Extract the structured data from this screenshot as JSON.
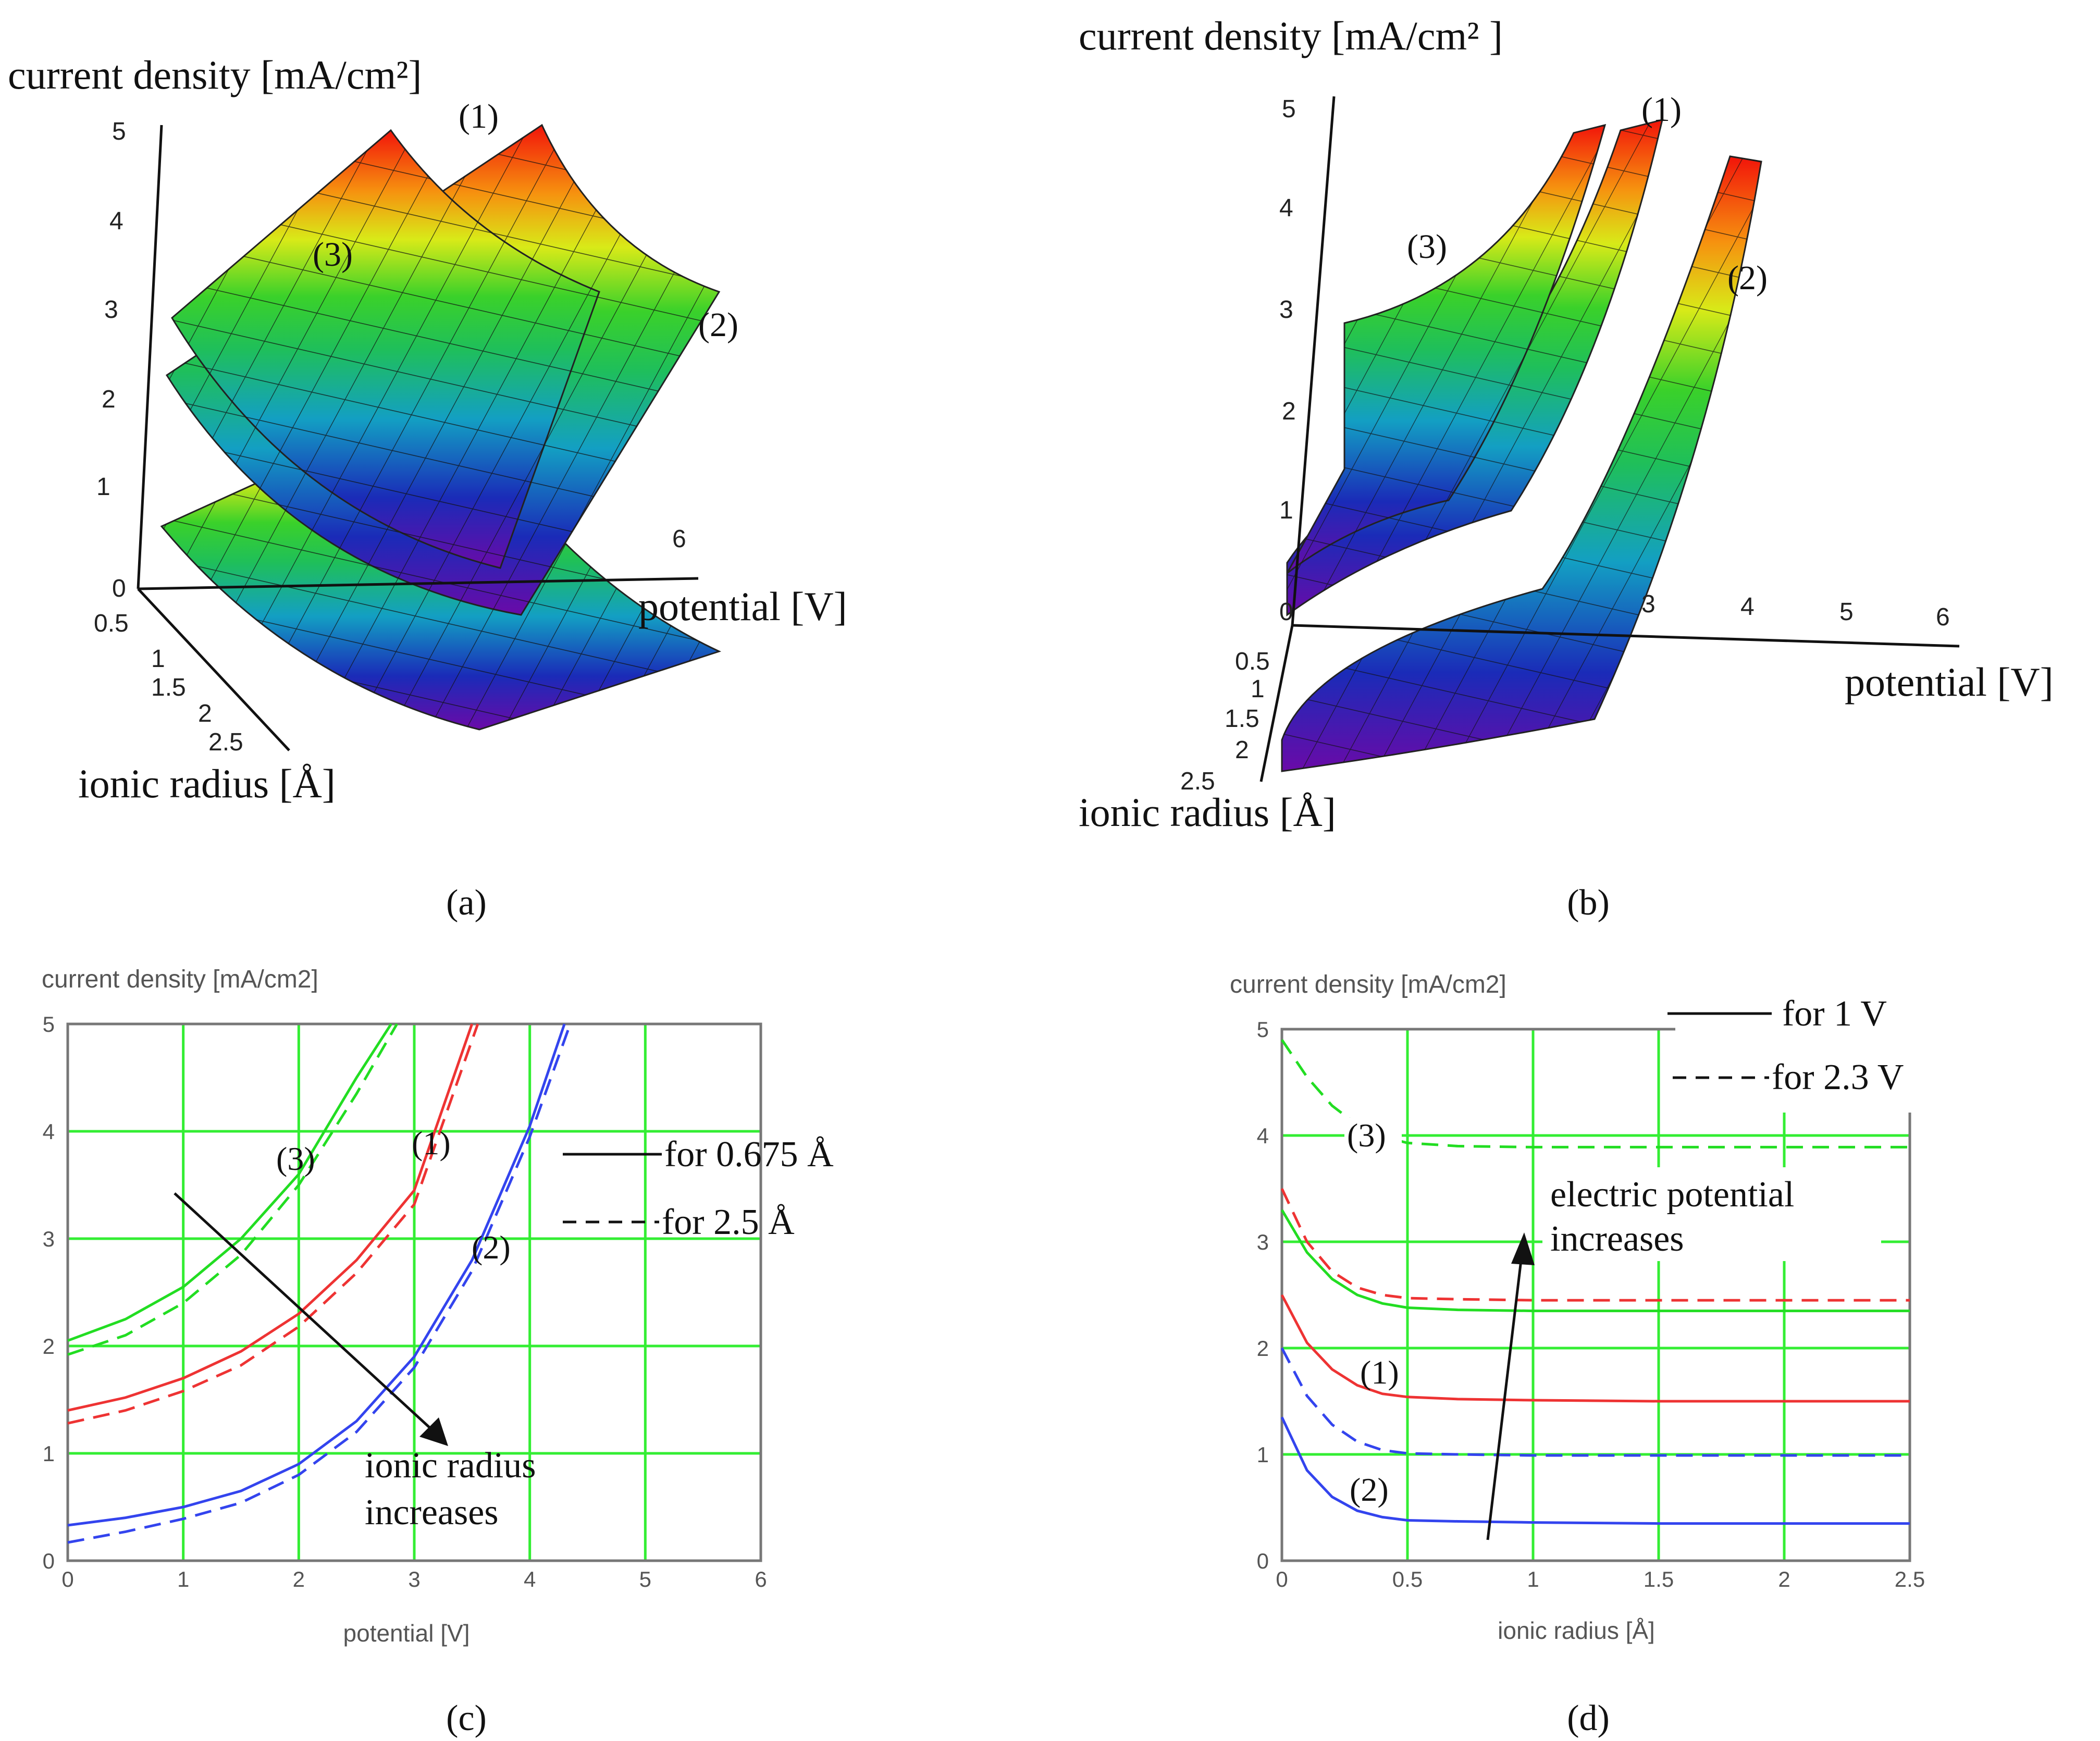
{
  "chart_data": [
    {
      "panel": "(a)",
      "type": "surface3d",
      "zlabel": "current density [mA/cm²]",
      "xlabel": "potential [V]",
      "ylabel": "ionic radius [Å]",
      "z_ticks": [
        "5",
        "4",
        "3",
        "2",
        "1",
        "0"
      ],
      "x_ticks": [
        "6"
      ],
      "y_ticks": [
        "0.5",
        "1",
        "1.5",
        "2",
        "2.5"
      ],
      "surfaces": [
        "(1)",
        "(2)",
        "(3)"
      ]
    },
    {
      "panel": "(b)",
      "type": "surface3d",
      "zlabel": "current density [mA/cm² ]",
      "xlabel": "potential [V]",
      "ylabel": "ionic radius [Å]",
      "z_ticks": [
        "5",
        "4",
        "3",
        "2",
        "1",
        "0"
      ],
      "x_ticks": [
        "3",
        "4",
        "5",
        "6"
      ],
      "y_ticks": [
        "0.5",
        "1",
        "1.5",
        "2",
        "2.5"
      ],
      "surfaces": [
        "(1)",
        "(2)",
        "(3)"
      ]
    },
    {
      "panel": "(c)",
      "type": "line",
      "ylabel": "current density [mA/cm2]",
      "xlabel": "potential [V]",
      "xlim": [
        0,
        6
      ],
      "ylim": [
        0,
        5
      ],
      "x_ticks": [
        "0",
        "1",
        "2",
        "3",
        "4",
        "5",
        "6"
      ],
      "y_ticks": [
        "0",
        "1",
        "2",
        "3",
        "4",
        "5"
      ],
      "legend": [
        {
          "style": "solid",
          "label": "for 0.675 Å"
        },
        {
          "style": "dashed",
          "label": "for 2.5 Å"
        }
      ],
      "series": [
        {
          "name": "(3)",
          "color": "#22dd22",
          "style": "solid",
          "x": [
            0,
            0.5,
            1,
            1.5,
            2,
            2.5,
            2.8
          ],
          "y": [
            2.05,
            2.25,
            2.55,
            3.0,
            3.6,
            4.5,
            5.0
          ]
        },
        {
          "name": "(3)",
          "color": "#22dd22",
          "style": "dashed",
          "x": [
            0,
            0.5,
            1,
            1.5,
            2,
            2.5,
            2.85
          ],
          "y": [
            1.92,
            2.1,
            2.4,
            2.85,
            3.5,
            4.35,
            5.0
          ]
        },
        {
          "name": "(1)",
          "color": "#ee3333",
          "style": "solid",
          "x": [
            0,
            0.5,
            1,
            1.5,
            2,
            2.5,
            3,
            3.5
          ],
          "y": [
            1.4,
            1.52,
            1.7,
            1.95,
            2.3,
            2.8,
            3.45,
            5.0
          ]
        },
        {
          "name": "(1)",
          "color": "#ee3333",
          "style": "dashed",
          "x": [
            0,
            0.5,
            1,
            1.5,
            2,
            2.5,
            3,
            3.55
          ],
          "y": [
            1.28,
            1.4,
            1.58,
            1.82,
            2.18,
            2.68,
            3.32,
            5.0
          ]
        },
        {
          "name": "(2)",
          "color": "#3344ee",
          "style": "solid",
          "x": [
            0,
            0.5,
            1,
            1.5,
            2,
            2.5,
            3,
            3.5,
            4,
            4.3
          ],
          "y": [
            0.33,
            0.4,
            0.5,
            0.65,
            0.9,
            1.3,
            1.9,
            2.8,
            4.05,
            5.0
          ]
        },
        {
          "name": "(2)",
          "color": "#3344ee",
          "style": "dashed",
          "x": [
            0,
            0.5,
            1,
            1.5,
            2,
            2.5,
            3,
            3.5,
            4,
            4.35
          ],
          "y": [
            0.17,
            0.27,
            0.39,
            0.54,
            0.8,
            1.2,
            1.8,
            2.7,
            3.95,
            5.0
          ]
        }
      ],
      "annotations": [
        "(3)",
        "(1)",
        "(2)",
        "ionic radius",
        "increases"
      ]
    },
    {
      "panel": "(d)",
      "type": "line",
      "ylabel": "current density [mA/cm2]",
      "xlabel": "ionic radius [Å]",
      "xlim": [
        0,
        2.5
      ],
      "ylim": [
        0,
        5
      ],
      "x_ticks": [
        "0",
        "0.5",
        "1",
        "1.5",
        "2",
        "2.5"
      ],
      "y_ticks": [
        "0",
        "1",
        "2",
        "3",
        "4",
        "5"
      ],
      "legend": [
        {
          "style": "solid",
          "label": "for 1 V"
        },
        {
          "style": "dashed",
          "label": "for 2.3 V"
        }
      ],
      "series": [
        {
          "name": "(3)",
          "color": "#22dd22",
          "style": "dashed",
          "x": [
            0,
            0.1,
            0.2,
            0.3,
            0.4,
            0.5,
            0.7,
            1,
            1.5,
            2,
            2.5
          ],
          "y": [
            4.9,
            4.55,
            4.28,
            4.1,
            3.99,
            3.93,
            3.9,
            3.89,
            3.89,
            3.89,
            3.89
          ]
        },
        {
          "name": "(3)",
          "color": "#22dd22",
          "style": "solid",
          "x": [
            0,
            0.1,
            0.2,
            0.3,
            0.4,
            0.5,
            0.7,
            1,
            1.5,
            2,
            2.5
          ],
          "y": [
            3.3,
            2.9,
            2.65,
            2.5,
            2.42,
            2.38,
            2.36,
            2.35,
            2.35,
            2.35,
            2.35
          ]
        },
        {
          "name": "(1)",
          "color": "#ee3333",
          "style": "dashed",
          "x": [
            0,
            0.1,
            0.2,
            0.3,
            0.4,
            0.5,
            0.7,
            1,
            1.5,
            2,
            2.5
          ],
          "y": [
            3.5,
            3.0,
            2.72,
            2.57,
            2.5,
            2.47,
            2.46,
            2.45,
            2.45,
            2.45,
            2.45
          ]
        },
        {
          "name": "(1)",
          "color": "#ee3333",
          "style": "solid",
          "x": [
            0,
            0.1,
            0.2,
            0.3,
            0.4,
            0.5,
            0.7,
            1,
            1.5,
            2,
            2.5
          ],
          "y": [
            2.5,
            2.05,
            1.8,
            1.65,
            1.57,
            1.54,
            1.52,
            1.51,
            1.5,
            1.5,
            1.5
          ]
        },
        {
          "name": "(2)",
          "color": "#3344ee",
          "style": "dashed",
          "x": [
            0,
            0.1,
            0.2,
            0.3,
            0.4,
            0.5,
            0.7,
            1,
            1.5,
            2,
            2.5
          ],
          "y": [
            2.0,
            1.55,
            1.28,
            1.12,
            1.04,
            1.01,
            1.0,
            0.99,
            0.99,
            0.99,
            0.99
          ]
        },
        {
          "name": "(2)",
          "color": "#3344ee",
          "style": "solid",
          "x": [
            0,
            0.1,
            0.2,
            0.3,
            0.4,
            0.5,
            0.7,
            1,
            1.5,
            2,
            2.5
          ],
          "y": [
            1.35,
            0.85,
            0.6,
            0.47,
            0.41,
            0.38,
            0.37,
            0.36,
            0.35,
            0.35,
            0.35
          ]
        }
      ],
      "annotations": [
        "(3)",
        "(1)",
        "(2)",
        "electric potential",
        "increases"
      ]
    }
  ],
  "captions": [
    "(a)",
    "(b)",
    "(c)",
    "(d)"
  ]
}
